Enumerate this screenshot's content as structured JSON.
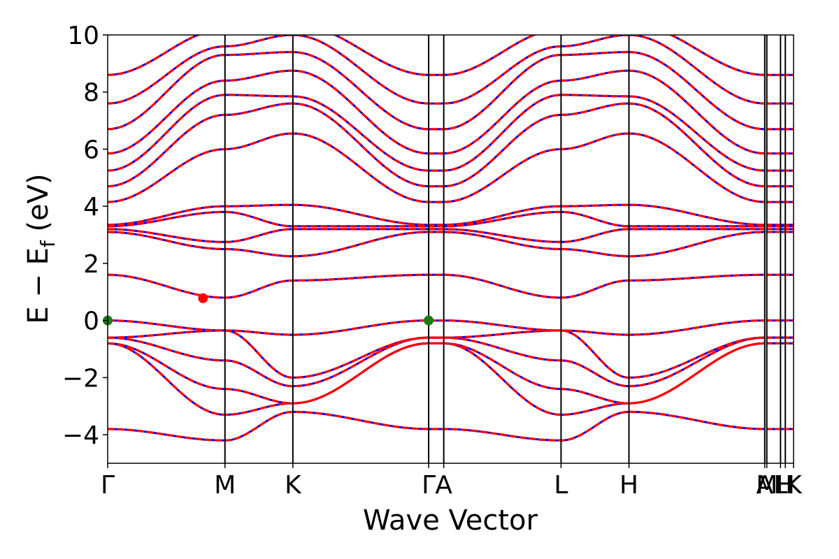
{
  "chart_data": {
    "type": "line",
    "xlabel": "Wave Vector",
    "ylabel": {
      "main": "E − E",
      "sub": "f",
      "unit": " (eV)"
    },
    "ylim": [
      -5,
      10
    ],
    "yticks": [
      {
        "value": 10,
        "label": "10"
      },
      {
        "value": 8,
        "label": "8"
      },
      {
        "value": 6,
        "label": "6"
      },
      {
        "value": 4,
        "label": "4"
      },
      {
        "value": 2,
        "label": "2"
      },
      {
        "value": 0,
        "label": "0"
      },
      {
        "value": -2,
        "label": "−2"
      },
      {
        "value": -4,
        "label": "−4"
      }
    ],
    "xlim": [
      0,
      1
    ],
    "kpoints": [
      {
        "label": "Γ",
        "x": 0.0
      },
      {
        "label": "M",
        "x": 0.171
      },
      {
        "label": "K",
        "x": 0.27
      },
      {
        "label": "Γ",
        "x": 0.468
      },
      {
        "label": "A",
        "x": 0.49
      },
      {
        "label": "L",
        "x": 0.661
      },
      {
        "label": "H",
        "x": 0.76
      },
      {
        "label": "A",
        "x": 0.958
      },
      {
        "label": "M",
        "x": 0.961
      },
      {
        "label": "L",
        "x": 0.981
      },
      {
        "label": "H",
        "x": 0.988
      },
      {
        "label": "K",
        "x": 1.0
      }
    ],
    "grid": false,
    "series": [
      {
        "color": "#0000ff",
        "style": "solid"
      },
      {
        "color": "#ff0000",
        "style": "dashed"
      }
    ],
    "bands": [
      {
        "y": [
          -3.8,
          -4.2,
          -3.2,
          -3.8,
          -3.8,
          -4.2,
          -3.2,
          -3.8
        ]
      },
      {
        "y": [
          -0.8,
          -3.3,
          -2.9,
          -0.8,
          -0.8,
          -3.3,
          -2.9,
          -0.8
        ]
      },
      {
        "y": [
          -0.8,
          -2.4,
          -2.9,
          -0.8,
          -0.8,
          -2.4,
          -2.9,
          -0.8
        ]
      },
      {
        "y": [
          -0.6,
          -1.4,
          -2.3,
          -0.6,
          -0.6,
          -1.4,
          -2.3,
          -0.6
        ]
      },
      {
        "y": [
          -0.6,
          -0.35,
          -2.0,
          -0.6,
          -0.6,
          -0.35,
          -2.0,
          -0.6
        ]
      },
      {
        "y": [
          0.0,
          -0.35,
          -0.5,
          0.0,
          0.0,
          -0.35,
          -0.5,
          0.0
        ]
      },
      {
        "y": [
          1.6,
          0.8,
          1.4,
          1.6,
          1.6,
          0.8,
          1.4,
          1.6
        ]
      },
      {
        "y": [
          3.1,
          2.5,
          2.25,
          3.1,
          3.1,
          2.5,
          2.25,
          3.1
        ]
      },
      {
        "y": [
          3.2,
          2.75,
          3.2,
          3.2,
          3.2,
          2.75,
          3.2,
          3.2
        ]
      },
      {
        "y": [
          3.3,
          3.8,
          3.3,
          3.3,
          3.3,
          3.8,
          3.3,
          3.3
        ]
      },
      {
        "y": [
          3.35,
          4.0,
          4.05,
          3.35,
          3.35,
          4.0,
          4.05,
          3.35
        ]
      },
      {
        "y": [
          4.15,
          6.0,
          6.55,
          4.15,
          4.15,
          6.0,
          6.55,
          4.15
        ]
      },
      {
        "y": [
          4.7,
          7.2,
          7.6,
          4.7,
          4.7,
          7.2,
          7.6,
          4.7
        ]
      },
      {
        "y": [
          5.25,
          7.9,
          7.85,
          5.25,
          5.25,
          7.9,
          7.85,
          5.25
        ]
      },
      {
        "y": [
          5.85,
          8.4,
          8.75,
          5.85,
          5.85,
          8.4,
          8.75,
          5.85
        ]
      },
      {
        "y": [
          6.7,
          9.3,
          9.4,
          6.7,
          6.7,
          9.3,
          9.4,
          6.7
        ]
      },
      {
        "y": [
          7.6,
          9.6,
          10.0,
          7.6,
          7.6,
          9.6,
          10.0,
          7.6
        ]
      },
      {
        "y": [
          8.6,
          10.2,
          10.4,
          8.6,
          8.6,
          10.2,
          10.4,
          8.6
        ]
      }
    ],
    "markers": [
      {
        "x": 0.0,
        "y": 0.0,
        "color": "#1a7a1a"
      },
      {
        "x": 0.468,
        "y": 0.0,
        "color": "#1a7a1a"
      },
      {
        "x": 0.139,
        "y": 0.78,
        "color": "#ff0000"
      }
    ]
  }
}
